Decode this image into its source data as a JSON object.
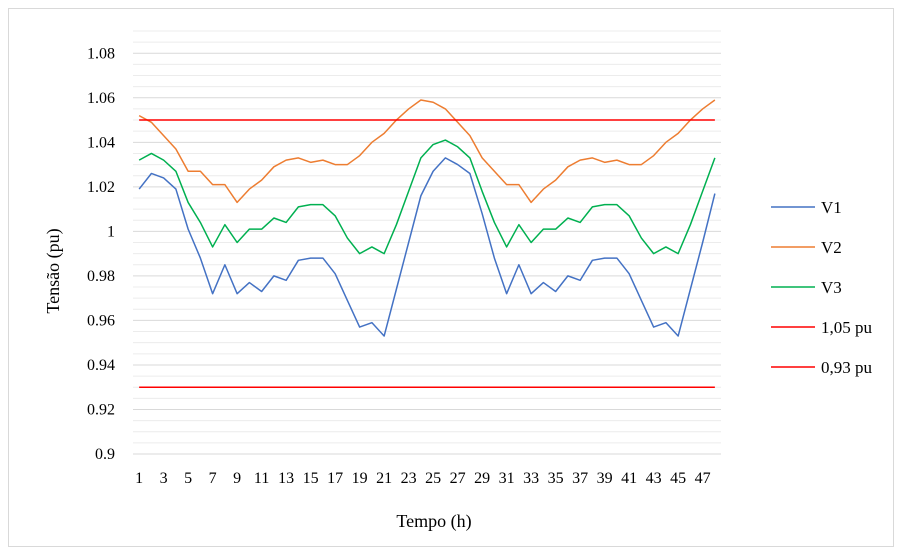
{
  "chart_data": {
    "type": "line",
    "title": "",
    "xlabel": "Tempo (h)",
    "ylabel": "Tensão (pu)",
    "ylim": [
      0.9,
      1.09
    ],
    "yticks": [
      "1.08",
      "1.06",
      "1.04",
      "1.02",
      "1",
      "0.98",
      "0.96",
      "0.94",
      "0.92",
      "0.9"
    ],
    "ytick_values": [
      1.08,
      1.06,
      1.04,
      1.02,
      1.0,
      0.98,
      0.96,
      0.94,
      0.92,
      0.9
    ],
    "x": [
      1,
      2,
      3,
      4,
      5,
      6,
      7,
      8,
      9,
      10,
      11,
      12,
      13,
      14,
      15,
      16,
      17,
      18,
      19,
      20,
      21,
      22,
      23,
      24,
      25,
      26,
      27,
      28,
      29,
      30,
      31,
      32,
      33,
      34,
      35,
      36,
      37,
      38,
      39,
      40,
      41,
      42,
      43,
      44,
      45,
      46,
      47,
      48
    ],
    "xtick_labels": [
      "1",
      "3",
      "5",
      "7",
      "9",
      "11",
      "13",
      "15",
      "17",
      "19",
      "21",
      "23",
      "25",
      "27",
      "29",
      "31",
      "33",
      "35",
      "37",
      "39",
      "41",
      "43",
      "45",
      "47"
    ],
    "grid": true,
    "minor_grid": true,
    "legend_position": "right",
    "series": [
      {
        "name": "V1",
        "color": "#4472c4",
        "values": [
          1.019,
          1.026,
          1.024,
          1.019,
          1.001,
          0.988,
          0.972,
          0.985,
          0.972,
          0.977,
          0.973,
          0.98,
          0.978,
          0.987,
          0.988,
          0.988,
          0.981,
          0.969,
          0.957,
          0.959,
          0.953,
          0.974,
          0.995,
          1.016,
          1.027,
          1.033,
          1.03,
          1.026,
          1.008,
          0.988,
          0.972,
          0.985,
          0.972,
          0.977,
          0.973,
          0.98,
          0.978,
          0.987,
          0.988,
          0.988,
          0.981,
          0.969,
          0.957,
          0.959,
          0.953,
          0.974,
          0.995,
          1.017
        ]
      },
      {
        "name": "V2",
        "color": "#ed7d31",
        "values": [
          1.052,
          1.049,
          1.043,
          1.037,
          1.027,
          1.027,
          1.021,
          1.021,
          1.013,
          1.019,
          1.023,
          1.029,
          1.032,
          1.033,
          1.031,
          1.032,
          1.03,
          1.03,
          1.034,
          1.04,
          1.044,
          1.05,
          1.055,
          1.059,
          1.058,
          1.055,
          1.049,
          1.043,
          1.033,
          1.027,
          1.021,
          1.021,
          1.013,
          1.019,
          1.023,
          1.029,
          1.032,
          1.033,
          1.031,
          1.032,
          1.03,
          1.03,
          1.034,
          1.04,
          1.044,
          1.05,
          1.055,
          1.059
        ]
      },
      {
        "name": "V3",
        "color": "#00b050",
        "values": [
          1.032,
          1.035,
          1.032,
          1.027,
          1.013,
          1.004,
          0.993,
          1.003,
          0.995,
          1.001,
          1.001,
          1.006,
          1.004,
          1.011,
          1.012,
          1.012,
          1.007,
          0.997,
          0.99,
          0.993,
          0.99,
          1.003,
          1.018,
          1.033,
          1.039,
          1.041,
          1.038,
          1.033,
          1.018,
          1.004,
          0.993,
          1.003,
          0.995,
          1.001,
          1.001,
          1.006,
          1.004,
          1.011,
          1.012,
          1.012,
          1.007,
          0.997,
          0.99,
          0.993,
          0.99,
          1.003,
          1.018,
          1.033
        ]
      },
      {
        "name": "1,05 pu",
        "color": "#ff0000",
        "constant": 1.05
      },
      {
        "name": "0,93 pu",
        "color": "#ff0000",
        "constant": 0.93
      }
    ]
  }
}
